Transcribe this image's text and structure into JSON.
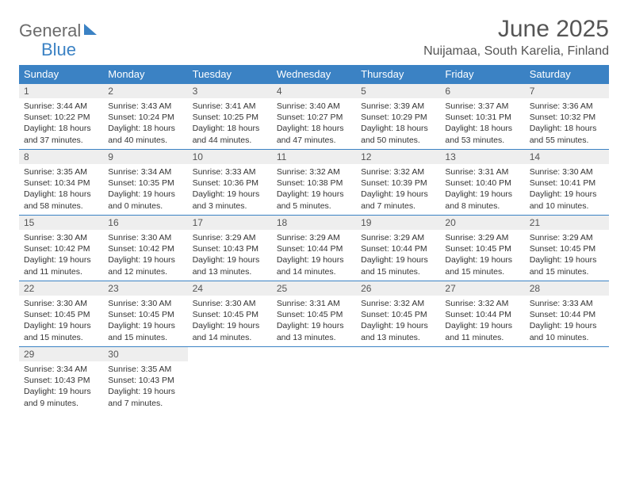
{
  "brand": {
    "part1": "General",
    "part2": "Blue"
  },
  "title": "June 2025",
  "location": "Nuijamaa, South Karelia, Finland",
  "colors": {
    "accent": "#3b82c4",
    "header_bg": "#3b82c4",
    "header_fg": "#ffffff",
    "daynum_bg": "#eeeeee",
    "text": "#333333",
    "title_color": "#555555"
  },
  "weekdays": [
    "Sunday",
    "Monday",
    "Tuesday",
    "Wednesday",
    "Thursday",
    "Friday",
    "Saturday"
  ],
  "days": [
    {
      "n": 1,
      "sunrise": "3:44 AM",
      "sunset": "10:22 PM",
      "daylight": "18 hours and 37 minutes."
    },
    {
      "n": 2,
      "sunrise": "3:43 AM",
      "sunset": "10:24 PM",
      "daylight": "18 hours and 40 minutes."
    },
    {
      "n": 3,
      "sunrise": "3:41 AM",
      "sunset": "10:25 PM",
      "daylight": "18 hours and 44 minutes."
    },
    {
      "n": 4,
      "sunrise": "3:40 AM",
      "sunset": "10:27 PM",
      "daylight": "18 hours and 47 minutes."
    },
    {
      "n": 5,
      "sunrise": "3:39 AM",
      "sunset": "10:29 PM",
      "daylight": "18 hours and 50 minutes."
    },
    {
      "n": 6,
      "sunrise": "3:37 AM",
      "sunset": "10:31 PM",
      "daylight": "18 hours and 53 minutes."
    },
    {
      "n": 7,
      "sunrise": "3:36 AM",
      "sunset": "10:32 PM",
      "daylight": "18 hours and 55 minutes."
    },
    {
      "n": 8,
      "sunrise": "3:35 AM",
      "sunset": "10:34 PM",
      "daylight": "18 hours and 58 minutes."
    },
    {
      "n": 9,
      "sunrise": "3:34 AM",
      "sunset": "10:35 PM",
      "daylight": "19 hours and 0 minutes."
    },
    {
      "n": 10,
      "sunrise": "3:33 AM",
      "sunset": "10:36 PM",
      "daylight": "19 hours and 3 minutes."
    },
    {
      "n": 11,
      "sunrise": "3:32 AM",
      "sunset": "10:38 PM",
      "daylight": "19 hours and 5 minutes."
    },
    {
      "n": 12,
      "sunrise": "3:32 AM",
      "sunset": "10:39 PM",
      "daylight": "19 hours and 7 minutes."
    },
    {
      "n": 13,
      "sunrise": "3:31 AM",
      "sunset": "10:40 PM",
      "daylight": "19 hours and 8 minutes."
    },
    {
      "n": 14,
      "sunrise": "3:30 AM",
      "sunset": "10:41 PM",
      "daylight": "19 hours and 10 minutes."
    },
    {
      "n": 15,
      "sunrise": "3:30 AM",
      "sunset": "10:42 PM",
      "daylight": "19 hours and 11 minutes."
    },
    {
      "n": 16,
      "sunrise": "3:30 AM",
      "sunset": "10:42 PM",
      "daylight": "19 hours and 12 minutes."
    },
    {
      "n": 17,
      "sunrise": "3:29 AM",
      "sunset": "10:43 PM",
      "daylight": "19 hours and 13 minutes."
    },
    {
      "n": 18,
      "sunrise": "3:29 AM",
      "sunset": "10:44 PM",
      "daylight": "19 hours and 14 minutes."
    },
    {
      "n": 19,
      "sunrise": "3:29 AM",
      "sunset": "10:44 PM",
      "daylight": "19 hours and 15 minutes."
    },
    {
      "n": 20,
      "sunrise": "3:29 AM",
      "sunset": "10:45 PM",
      "daylight": "19 hours and 15 minutes."
    },
    {
      "n": 21,
      "sunrise": "3:29 AM",
      "sunset": "10:45 PM",
      "daylight": "19 hours and 15 minutes."
    },
    {
      "n": 22,
      "sunrise": "3:30 AM",
      "sunset": "10:45 PM",
      "daylight": "19 hours and 15 minutes."
    },
    {
      "n": 23,
      "sunrise": "3:30 AM",
      "sunset": "10:45 PM",
      "daylight": "19 hours and 15 minutes."
    },
    {
      "n": 24,
      "sunrise": "3:30 AM",
      "sunset": "10:45 PM",
      "daylight": "19 hours and 14 minutes."
    },
    {
      "n": 25,
      "sunrise": "3:31 AM",
      "sunset": "10:45 PM",
      "daylight": "19 hours and 13 minutes."
    },
    {
      "n": 26,
      "sunrise": "3:32 AM",
      "sunset": "10:45 PM",
      "daylight": "19 hours and 13 minutes."
    },
    {
      "n": 27,
      "sunrise": "3:32 AM",
      "sunset": "10:44 PM",
      "daylight": "19 hours and 11 minutes."
    },
    {
      "n": 28,
      "sunrise": "3:33 AM",
      "sunset": "10:44 PM",
      "daylight": "19 hours and 10 minutes."
    },
    {
      "n": 29,
      "sunrise": "3:34 AM",
      "sunset": "10:43 PM",
      "daylight": "19 hours and 9 minutes."
    },
    {
      "n": 30,
      "sunrise": "3:35 AM",
      "sunset": "10:43 PM",
      "daylight": "19 hours and 7 minutes."
    }
  ],
  "labels": {
    "sunrise": "Sunrise:",
    "sunset": "Sunset:",
    "daylight": "Daylight:"
  }
}
